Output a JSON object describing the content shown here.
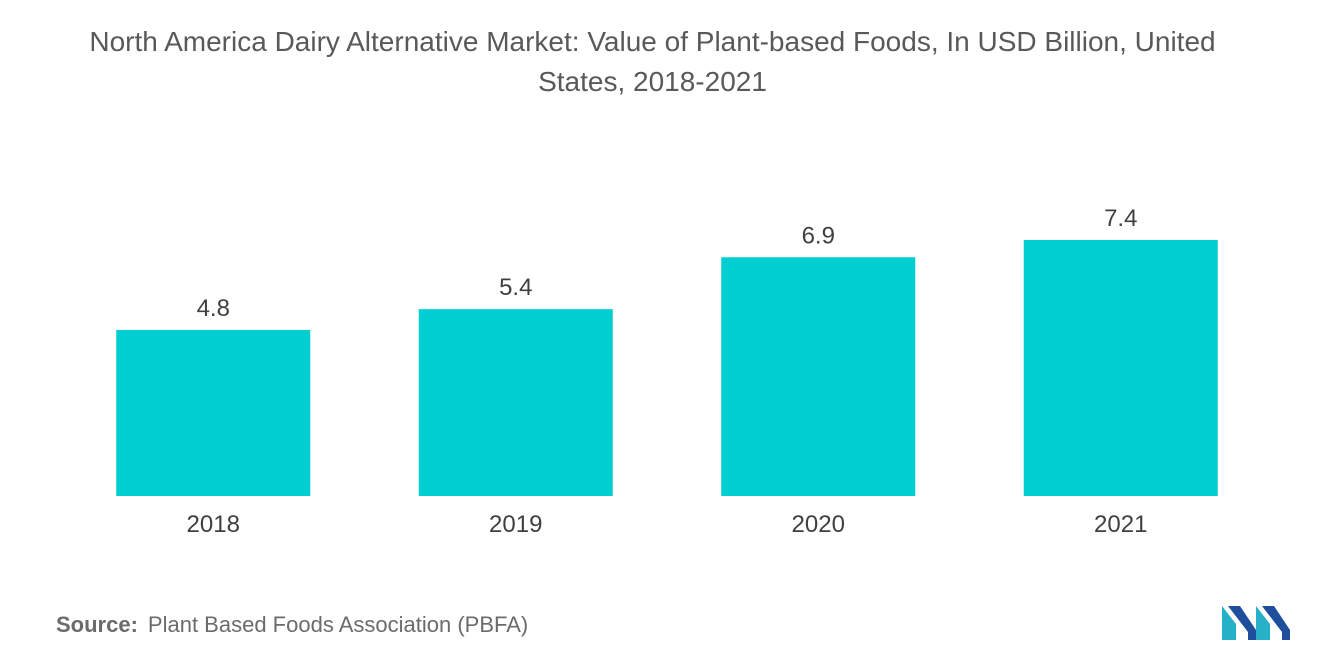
{
  "title": {
    "line1": "North America Dairy Alternative Market: Value of Plant-based Foods, In USD Billion, United",
    "line2": "States, 2018-2021"
  },
  "chart_data": {
    "type": "bar",
    "categories": [
      "2018",
      "2019",
      "2020",
      "2021"
    ],
    "values": [
      4.8,
      5.4,
      6.9,
      7.4
    ],
    "data_labels": [
      "4.8",
      "5.4",
      "6.9",
      "7.4"
    ],
    "title": "North America Dairy Alternative Market: Value of Plant-based Foods, In USD Billion, United States, 2018-2021",
    "xlabel": "",
    "ylabel": "",
    "ylim": [
      0,
      8.5
    ],
    "grid": false,
    "legend": "none",
    "bar_color": "#00ced1"
  },
  "source": {
    "label": "Source:",
    "text": "Plant Based Foods Association (PBFA)"
  },
  "logo": {
    "icon": "mordor-intelligence-logo",
    "colors": [
      "#1f4e9c",
      "#27b1c9"
    ]
  }
}
